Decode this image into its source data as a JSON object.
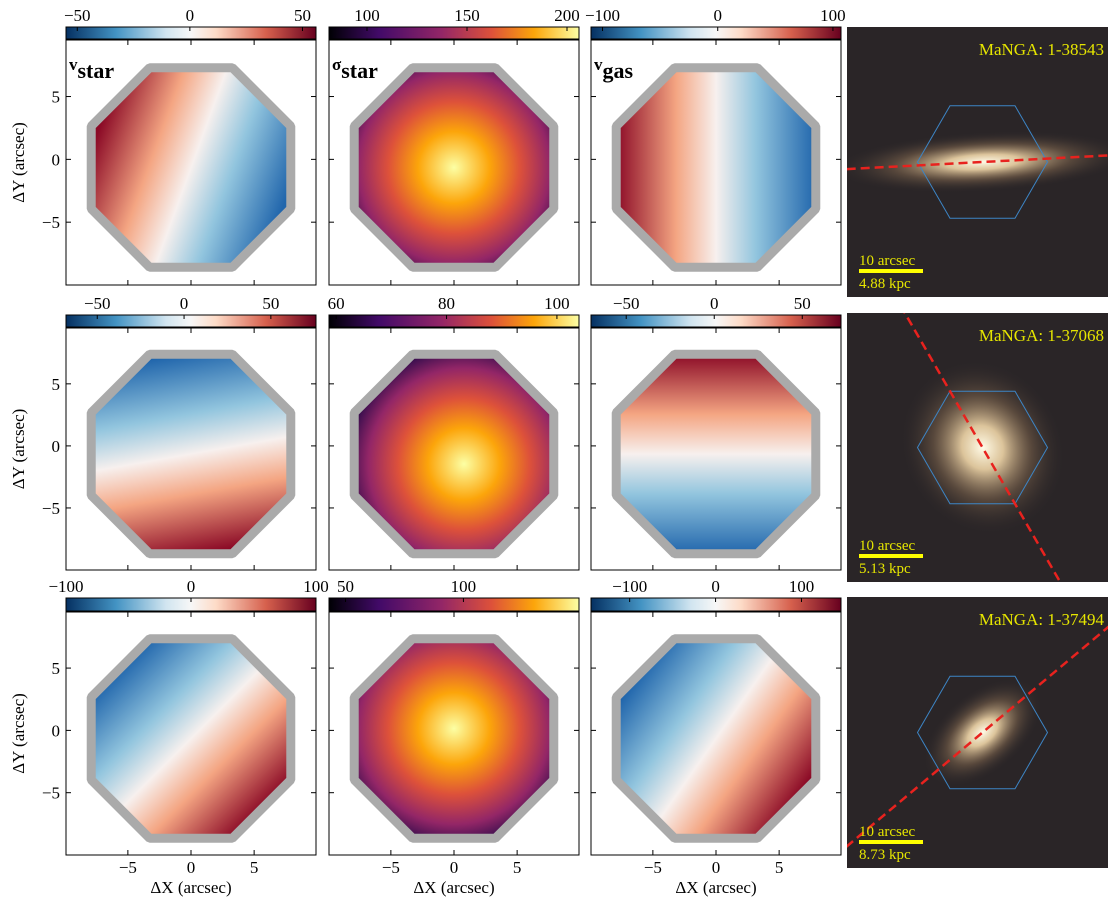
{
  "figure": {
    "x_label": "ΔX (arcsec)",
    "y_label": "ΔY (arcsec)",
    "xlim": [
      -9.9,
      9.9
    ],
    "ylim": [
      -10,
      9.5
    ],
    "xticks": [
      {
        "value": -5,
        "label": "−5"
      },
      0,
      5
    ],
    "yticks": [
      {
        "value": -5,
        "label": "−5"
      },
      0,
      5
    ],
    "panel_labels": [
      {
        "symbol": "v",
        "subscript": "star"
      },
      {
        "symbol": "σ",
        "subscript": "star"
      },
      {
        "symbol": "v",
        "subscript": "gas"
      }
    ],
    "rows": [
      {
        "colorbars": [
          {
            "cmap": "RdBu_r",
            "lim": [
              -55,
              56
            ],
            "ticks": [
              {
                "value": -50,
                "label": "−50"
              },
              0,
              50
            ]
          },
          {
            "cmap": "inferno",
            "lim": [
              81,
              206
            ],
            "ticks": [
              100,
              150,
              200
            ]
          },
          {
            "cmap": "RdBu_r",
            "lim": [
              -110,
              107
            ],
            "ticks": [
              {
                "value": -100,
                "label": "−100"
              },
              0,
              100
            ]
          }
        ],
        "galaxy": {
          "id": "MaNGA: 1-38543",
          "scale_bar": "10 arcsec",
          "physical_scale": "4.88 kpc"
        }
      },
      {
        "colorbars": [
          {
            "cmap": "RdBu_r",
            "lim": [
              -68,
              76
            ],
            "ticks": [
              {
                "value": -50,
                "label": "−50"
              },
              0,
              50
            ]
          },
          {
            "cmap": "inferno",
            "lim": [
              58.7,
              104
            ],
            "ticks": [
              60,
              80,
              100
            ]
          },
          {
            "cmap": "RdBu_r",
            "lim": [
              -70,
              72
            ],
            "ticks": [
              {
                "value": -50,
                "label": "−50"
              },
              0,
              50
            ]
          }
        ],
        "galaxy": {
          "id": "MaNGA: 1-37068",
          "scale_bar": "10 arcsec",
          "physical_scale": "5.13 kpc"
        }
      },
      {
        "colorbars": [
          {
            "cmap": "RdBu_r",
            "lim": [
              -100,
              100
            ],
            "ticks": [
              {
                "value": -100,
                "label": "−100"
              },
              0,
              100
            ]
          },
          {
            "cmap": "inferno",
            "lim": [
              43,
              149
            ],
            "ticks": [
              50,
              100
            ]
          },
          {
            "cmap": "RdBu_r",
            "lim": [
              -145,
              146
            ],
            "ticks": [
              {
                "value": -100,
                "label": "−100"
              },
              0,
              100
            ]
          }
        ],
        "galaxy": {
          "id": "MaNGA: 1-37494",
          "scale_bar": "10 arcsec",
          "physical_scale": "8.73 kpc"
        }
      }
    ]
  }
}
